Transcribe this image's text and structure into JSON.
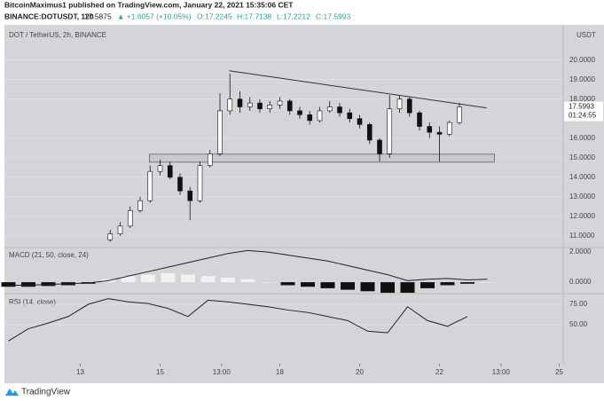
{
  "header": {
    "publisher": "BitcoinMaximus1 published on TradingView.com, January 22, 2021 15:35:06 CET",
    "symbol": "BINANCE:DOTUSDT, 120",
    "price": "17.5875",
    "change": "▲ +1.6057 (+10.05%)",
    "ohlc": [
      "O:17.2245",
      "H:17.7138",
      "L:17.2212",
      "C:17.5993"
    ]
  },
  "footer": {
    "brand": "TradingView"
  },
  "chart_data": [
    {
      "type": "candlestick",
      "title": "DOT / TetherUS, 2h, BINANCE",
      "unit": "USDT",
      "x": [
        13.75,
        14.0,
        14.25,
        14.5,
        14.75,
        15.0,
        15.25,
        15.5,
        15.75,
        16.0,
        16.25,
        16.5,
        16.75,
        17.0,
        17.25,
        17.5,
        17.75,
        18.0,
        18.25,
        18.5,
        18.75,
        19.0,
        19.25,
        19.5,
        19.75,
        20.0,
        20.25,
        20.5,
        20.75,
        21.0,
        21.25,
        21.5,
        21.75,
        22.0,
        22.25,
        22.5
      ],
      "open": [
        10.8,
        11.1,
        11.5,
        12.3,
        12.8,
        14.3,
        14.6,
        14.0,
        13.3,
        12.8,
        14.6,
        15.2,
        17.4,
        18.0,
        17.6,
        17.8,
        17.5,
        17.7,
        17.9,
        17.4,
        17.2,
        16.9,
        17.4,
        17.6,
        17.3,
        17.0,
        16.7,
        15.9,
        15.2,
        17.5,
        18.0,
        17.3,
        16.6,
        16.3,
        16.2,
        16.8
      ],
      "high": [
        11.3,
        11.7,
        12.5,
        13.0,
        14.6,
        14.9,
        14.8,
        14.2,
        13.5,
        14.8,
        15.4,
        18.3,
        19.3,
        18.4,
        18.1,
        18.0,
        17.9,
        18.1,
        18.0,
        17.6,
        17.4,
        17.6,
        17.9,
        17.8,
        17.5,
        17.2,
        16.8,
        16.0,
        18.2,
        18.2,
        18.1,
        17.4,
        16.8,
        16.6,
        16.9,
        17.8
      ],
      "low": [
        10.7,
        11.0,
        11.4,
        12.2,
        12.7,
        14.1,
        13.9,
        13.1,
        11.8,
        12.7,
        14.5,
        15.1,
        17.2,
        17.3,
        17.4,
        17.3,
        17.3,
        17.5,
        17.2,
        17.0,
        16.7,
        16.8,
        17.3,
        17.1,
        16.8,
        16.5,
        15.7,
        14.8,
        15.0,
        17.3,
        17.1,
        16.4,
        16.0,
        14.8,
        16.1,
        16.7
      ],
      "close": [
        11.1,
        11.5,
        12.3,
        12.8,
        14.3,
        14.6,
        14.0,
        13.3,
        12.8,
        14.6,
        15.2,
        17.4,
        18.0,
        17.6,
        17.8,
        17.5,
        17.7,
        17.9,
        17.4,
        17.2,
        16.9,
        17.4,
        17.6,
        17.3,
        17.0,
        16.7,
        15.9,
        15.2,
        17.5,
        18.0,
        17.3,
        16.6,
        16.3,
        16.2,
        16.8,
        17.6
      ],
      "up_color": "#ffffff",
      "down_color": "#111111",
      "trendline": {
        "x": [
          16.73,
          23.18
        ],
        "y": [
          19.45,
          17.55
        ]
      },
      "support_zone": {
        "x": [
          14.73,
          23.38
        ],
        "y": [
          14.77,
          15.18
        ]
      },
      "last_price": 17.5993,
      "countdown": "01:24:55",
      "xlim": [
        11.1,
        25.1
      ],
      "ylim": [
        10.45,
        21.8
      ],
      "yticks": [
        {
          "value": 11,
          "label": "11.0000"
        },
        {
          "value": 12,
          "label": "12.0000"
        },
        {
          "value": 13,
          "label": "13.0000"
        },
        {
          "value": 14,
          "label": "14.0000"
        },
        {
          "value": 15,
          "label": "15.0000"
        },
        {
          "value": 16,
          "label": "16.0000"
        },
        {
          "value": 18,
          "label": "18.0000"
        },
        {
          "value": 19,
          "label": "19.0000"
        },
        {
          "value": 20,
          "label": "20.0000"
        }
      ],
      "grid": true
    },
    {
      "type": "macd",
      "title": "MACD (21, 50, close, 24)",
      "x": [
        11.2,
        11.7,
        12.2,
        12.7,
        13.2,
        13.7,
        14.2,
        14.7,
        15.2,
        15.7,
        16.2,
        16.7,
        17.2,
        17.7,
        18.2,
        18.7,
        19.2,
        19.7,
        20.2,
        20.7,
        21.2,
        21.7,
        22.2,
        22.7,
        23.2
      ],
      "series": [
        {
          "name": "MACD",
          "color": "#222222",
          "values": [
            -0.2,
            -0.2,
            -0.15,
            -0.1,
            -0.05,
            0.1,
            0.4,
            0.7,
            1.0,
            1.3,
            1.6,
            1.9,
            2.1,
            2.0,
            1.8,
            1.6,
            1.4,
            1.1,
            0.8,
            0.5,
            0.1,
            0.2,
            0.25,
            0.15,
            0.2
          ]
        }
      ],
      "histogram": [
        -0.3,
        -0.3,
        -0.25,
        -0.2,
        -0.1,
        0.2,
        0.4,
        0.5,
        0.6,
        0.5,
        0.4,
        0.3,
        0.2,
        0.0,
        -0.2,
        -0.3,
        -0.4,
        -0.5,
        -0.6,
        -0.7,
        -0.7,
        -0.4,
        -0.2,
        -0.1,
        0.0
      ],
      "up_color": "#f2f2f2",
      "down_color": "#111111",
      "xlim": [
        11.1,
        25.1
      ],
      "ylim": [
        -0.7,
        2.24
      ],
      "yticks": [
        {
          "value": 0,
          "label": "0.0000"
        },
        {
          "value": 2,
          "label": "2.0000"
        }
      ]
    },
    {
      "type": "line",
      "title": "RSI (14, close)",
      "x": [
        11.2,
        11.7,
        12.2,
        12.7,
        13.2,
        13.7,
        14.2,
        14.7,
        15.2,
        15.7,
        16.2,
        16.7,
        17.2,
        17.7,
        18.2,
        18.7,
        19.2,
        19.7,
        20.2,
        20.7,
        21.2,
        21.7,
        22.2,
        22.7
      ],
      "series": [
        {
          "name": "RSI",
          "color": "#222222",
          "values": [
            30,
            45,
            52,
            60,
            75,
            82,
            78,
            76,
            70,
            60,
            80,
            78,
            75,
            72,
            68,
            65,
            60,
            55,
            42,
            40,
            72,
            55,
            48,
            60
          ]
        }
      ],
      "xlim": [
        11.1,
        25.1
      ],
      "ylim": [
        2,
        87
      ],
      "yticks": [
        {
          "value": 50,
          "label": "50.00"
        },
        {
          "value": 75,
          "label": "75.00"
        }
      ],
      "xticks": [
        {
          "value": 13,
          "label": "13"
        },
        {
          "value": 15,
          "label": "15"
        },
        {
          "value": 16.54,
          "label": "13:00"
        },
        {
          "value": 18,
          "label": "18"
        },
        {
          "value": 20,
          "label": "20"
        },
        {
          "value": 22,
          "label": "22"
        },
        {
          "value": 23.54,
          "label": "13:00"
        },
        {
          "value": 25,
          "label": "25"
        }
      ],
      "grid": true
    }
  ]
}
